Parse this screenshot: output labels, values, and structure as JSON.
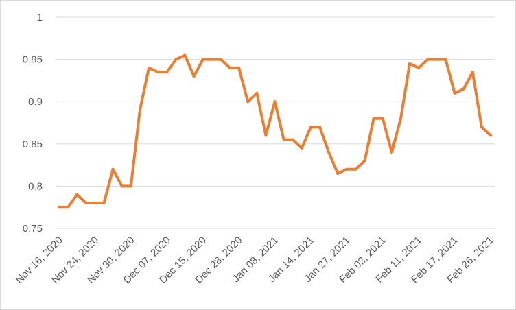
{
  "chart_data": {
    "type": "line",
    "title": "",
    "xlabel": "",
    "ylabel": "",
    "ylim": [
      0.75,
      1
    ],
    "y_ticks": [
      "0.75",
      "0.8",
      "0.85",
      "0.9",
      "0.95",
      "1"
    ],
    "x_tick_labels": [
      "Nov 16, 2020",
      "Nov 24, 2020",
      "Nov 30, 2020",
      "Dec 07, 2020",
      "Dec 15, 2020",
      "Dec 28, 2020",
      "Jan 08, 2021",
      "Jan 14, 2021",
      "Jan 27, 2021",
      "Feb 02, 2021",
      "Feb 11, 2021",
      "Feb 17, 2021",
      "Feb 26, 2021"
    ],
    "grid": true,
    "legend": "none",
    "line_color": "#ED7D31",
    "series": [
      {
        "values": [
          0.775,
          0.775,
          0.79,
          0.78,
          0.78,
          0.78,
          0.82,
          0.8,
          0.8,
          0.89,
          0.94,
          0.935,
          0.935,
          0.95,
          0.955,
          0.93,
          0.95,
          0.95,
          0.95,
          0.94,
          0.94,
          0.9,
          0.91,
          0.86,
          0.9,
          0.855,
          0.855,
          0.845,
          0.87,
          0.87,
          0.84,
          0.815,
          0.82,
          0.82,
          0.83,
          0.88,
          0.88,
          0.84,
          0.88,
          0.945,
          0.94,
          0.95,
          0.95,
          0.95,
          0.91,
          0.915,
          0.935,
          0.87,
          0.86
        ]
      }
    ]
  }
}
